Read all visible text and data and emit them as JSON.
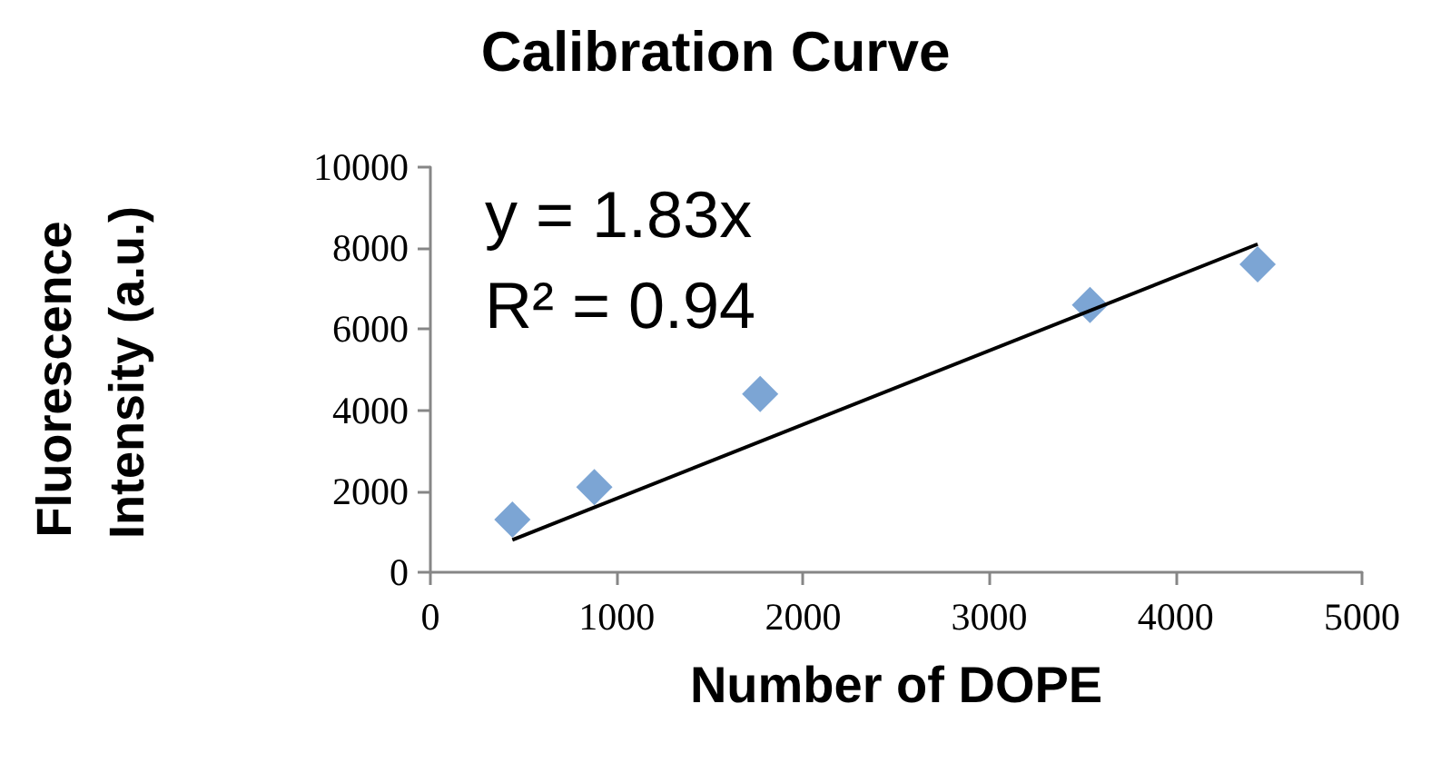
{
  "chart_data": {
    "type": "scatter",
    "title": "Calibration Curve",
    "xlabel": "Number of DOPE",
    "ylabel": "Fluorescence Intensity (a.u.)",
    "annotations": [
      "y = 1.83x",
      "R² = 0.94"
    ],
    "x": [
      440,
      880,
      1770,
      3540,
      4440
    ],
    "series": [
      {
        "color": "#5b8fc9",
        "values": [
          1300,
          2100,
          4400,
          6600,
          7600
        ]
      },
      {
        "type": "line",
        "color": "#000000",
        "marker": "none",
        "x": [
          440,
          4440
        ],
        "values": [
          800,
          8100
        ]
      }
    ],
    "xlim": [
      0,
      5000
    ],
    "xticks": [
      0,
      1000,
      2000,
      3000,
      4000,
      5000
    ],
    "ylim": [
      0,
      10000
    ],
    "yticks": [
      0,
      2000,
      4000,
      6000,
      8000,
      10000
    ],
    "grid": false,
    "marker": "diamond"
  }
}
